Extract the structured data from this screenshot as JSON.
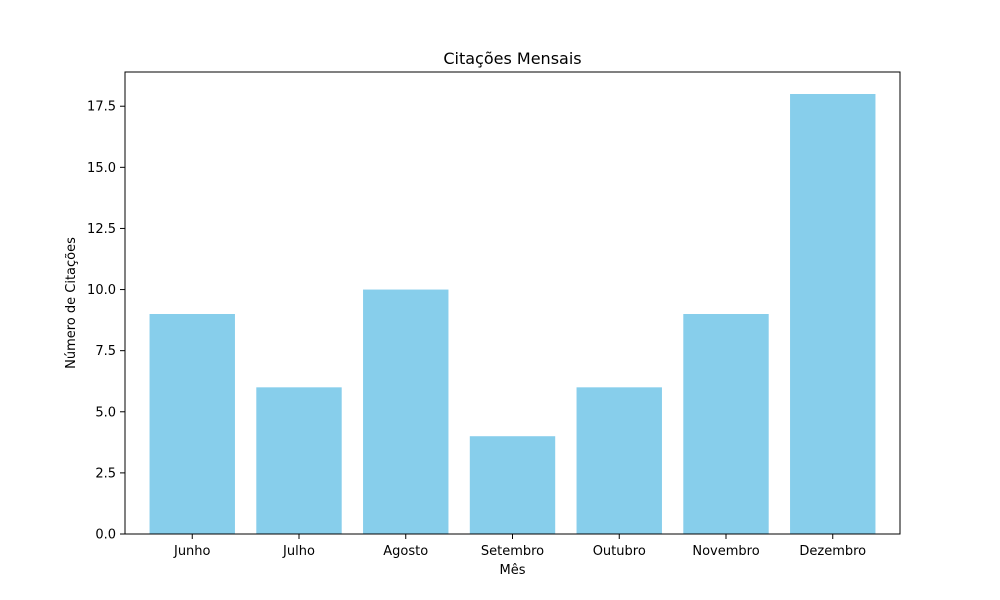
{
  "chart_data": {
    "type": "bar",
    "title": "Citações Mensais",
    "xlabel": "Mês",
    "ylabel": "Número de Citações",
    "categories": [
      "Junho",
      "Julho",
      "Agosto",
      "Setembro",
      "Outubro",
      "Novembro",
      "Dezembro"
    ],
    "values": [
      9,
      6,
      10,
      4,
      6,
      9,
      18
    ],
    "ylim": [
      0,
      18.9
    ],
    "yticks": [
      0.0,
      2.5,
      5.0,
      7.5,
      10.0,
      12.5,
      15.0,
      17.5
    ],
    "ytick_labels": [
      "0.0",
      "2.5",
      "5.0",
      "7.5",
      "10.0",
      "12.5",
      "15.0",
      "17.5"
    ],
    "grid": false,
    "bar_color": "#87CEEB",
    "axis_color": "#000000"
  }
}
